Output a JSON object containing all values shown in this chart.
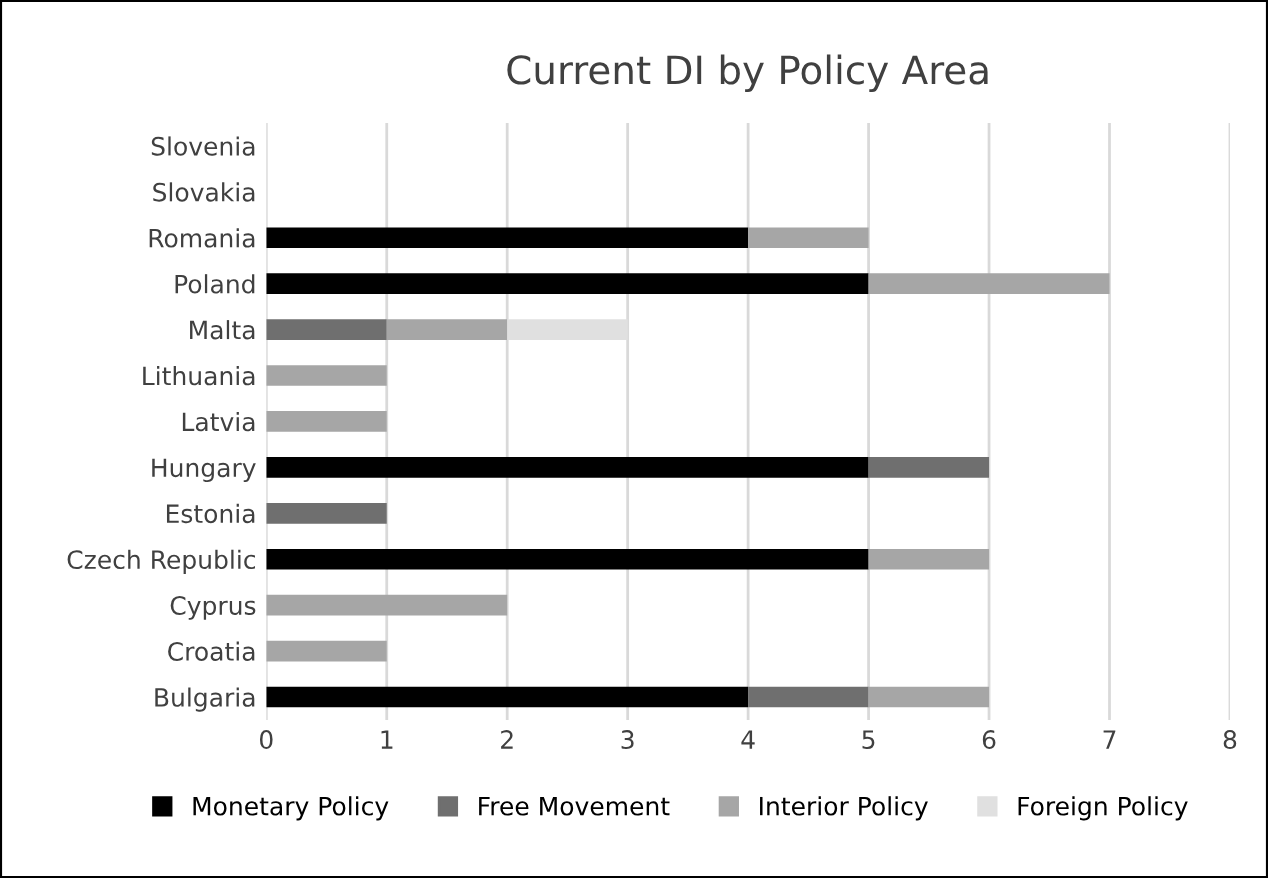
{
  "chart_data": {
    "type": "bar",
    "orientation": "horizontal",
    "stacked": true,
    "title": "Current DI by Policy Area",
    "categories": [
      "Slovenia",
      "Slovakia",
      "Romania",
      "Poland",
      "Malta",
      "Lithuania",
      "Latvia",
      "Hungary",
      "Estonia",
      "Czech Republic",
      "Cyprus",
      "Croatia",
      "Bulgaria"
    ],
    "series": [
      {
        "name": "Monetary Policy",
        "color": "#000000",
        "values": [
          null,
          null,
          4,
          5,
          null,
          null,
          null,
          5,
          null,
          5,
          null,
          null,
          4
        ]
      },
      {
        "name": "Free Movement",
        "color": "#6f6f6f",
        "values": [
          null,
          null,
          null,
          null,
          1,
          null,
          null,
          1,
          1,
          null,
          null,
          null,
          1
        ]
      },
      {
        "name": "Interior Policy",
        "color": "#a6a6a6",
        "values": [
          null,
          null,
          1,
          2,
          1,
          1,
          1,
          null,
          null,
          1,
          2,
          1,
          1
        ]
      },
      {
        "name": "Foreign Policy",
        "color": "#e0e0e0",
        "values": [
          null,
          null,
          null,
          null,
          1,
          null,
          null,
          null,
          null,
          null,
          null,
          null,
          null
        ]
      }
    ],
    "xlim": [
      0,
      8
    ],
    "xticks": [
      0,
      1,
      2,
      3,
      4,
      5,
      6,
      7,
      8
    ],
    "grid": "x",
    "legend": "bottom"
  }
}
